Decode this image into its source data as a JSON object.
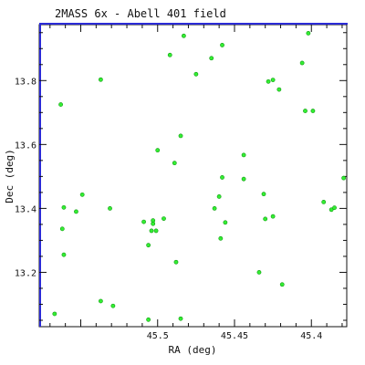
{
  "chart_data": {
    "type": "scatter",
    "title": "2MASS 6x - Abell 401 field",
    "xlabel": "RA (deg)",
    "ylabel": "Dec (deg)",
    "x_inverted": true,
    "xlim": [
      45.577,
      45.377
    ],
    "ylim": [
      13.03,
      13.975
    ],
    "x_ticks": [
      {
        "value": 45.5,
        "label": "45.5"
      },
      {
        "value": 45.45,
        "label": "45.45"
      },
      {
        "value": 45.4,
        "label": "45.4"
      }
    ],
    "y_ticks": [
      {
        "value": 13.2,
        "label": "13.2"
      },
      {
        "value": 13.4,
        "label": "13.4"
      },
      {
        "value": 13.6,
        "label": "13.6"
      },
      {
        "value": 13.8,
        "label": "13.8"
      }
    ],
    "grid": false,
    "marker_color": "#33ee33",
    "series": [
      {
        "points": [
          [
            45.563,
            13.725
          ],
          [
            45.561,
            13.403
          ],
          [
            45.562,
            13.336
          ],
          [
            45.561,
            13.255
          ],
          [
            45.567,
            13.07
          ],
          [
            45.553,
            13.39
          ],
          [
            45.549,
            13.443
          ],
          [
            45.537,
            13.803
          ],
          [
            45.537,
            13.11
          ],
          [
            45.531,
            13.4
          ],
          [
            45.529,
            13.095
          ],
          [
            45.509,
            13.358
          ],
          [
            45.503,
            13.362
          ],
          [
            45.503,
            13.352
          ],
          [
            45.504,
            13.33
          ],
          [
            45.501,
            13.33
          ],
          [
            45.506,
            13.285
          ],
          [
            45.5,
            13.582
          ],
          [
            45.496,
            13.368
          ],
          [
            45.492,
            13.88
          ],
          [
            45.489,
            13.542
          ],
          [
            45.488,
            13.232
          ],
          [
            45.506,
            13.052
          ],
          [
            45.485,
            13.627
          ],
          [
            45.483,
            13.94
          ],
          [
            45.485,
            13.055
          ],
          [
            45.475,
            13.82
          ],
          [
            45.463,
            13.4
          ],
          [
            45.465,
            13.87
          ],
          [
            45.459,
            13.306
          ],
          [
            45.46,
            13.437
          ],
          [
            45.458,
            13.911
          ],
          [
            45.458,
            13.497
          ],
          [
            45.456,
            13.356
          ],
          [
            45.444,
            13.567
          ],
          [
            45.444,
            13.492
          ],
          [
            45.434,
            13.2
          ],
          [
            45.431,
            13.445
          ],
          [
            45.43,
            13.367
          ],
          [
            45.428,
            13.797
          ],
          [
            45.425,
            13.802
          ],
          [
            45.425,
            13.375
          ],
          [
            45.421,
            13.772
          ],
          [
            45.419,
            13.162
          ],
          [
            45.406,
            13.855
          ],
          [
            45.404,
            13.705
          ],
          [
            45.402,
            13.948
          ],
          [
            45.399,
            13.705
          ],
          [
            45.392,
            13.42
          ],
          [
            45.387,
            13.396
          ],
          [
            45.385,
            13.402
          ],
          [
            45.379,
            13.495
          ]
        ]
      }
    ]
  }
}
